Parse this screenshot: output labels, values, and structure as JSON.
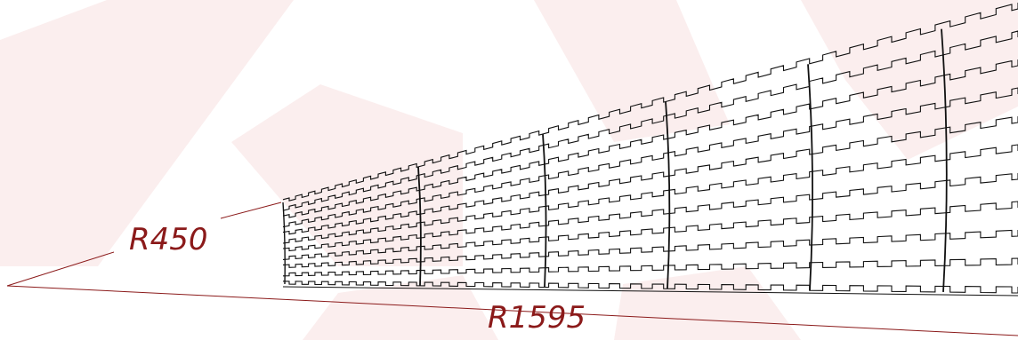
{
  "colors": {
    "background": "#ffffff",
    "watermark": "#fbeeee",
    "belt_line": "#111111",
    "dimension": "#8b1a1a"
  },
  "dimensions": {
    "inner_radius": "R450",
    "outer_radius": "R1595"
  },
  "watermark": {
    "present": true,
    "kind": "faint logo"
  },
  "belt": {
    "description_icon": "curved-modular-belt",
    "module_rows": 10,
    "module_columns": 6
  }
}
